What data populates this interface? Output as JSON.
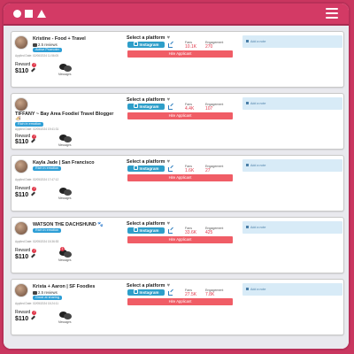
{
  "colors": {
    "frame": "#c9365f",
    "titlebar": "#d33a65",
    "accent_blue": "#2e9ec9",
    "hire_red": "#f05d66",
    "stat_red": "#e0384a",
    "note_bg": "#d8ebf7"
  },
  "common": {
    "select_platform": "Select a platform",
    "instagram_label": "Instagram",
    "fans_label": "Fans",
    "engagement_label": "Engagement",
    "hire_label": "Hire Applicant",
    "reward_label": "Reward",
    "reward_value": "$110",
    "messages_label": "Messages",
    "add_note": "Add a note",
    "applied_prefix": "Applied Date:"
  },
  "applicants": [
    {
      "name": "Kristine - Food + Travel",
      "reviews": "2.5 reviews",
      "badge": "Active Promoter",
      "applied": "02/06/2024 11:56:05",
      "fans": "10.1K",
      "engagement": "270",
      "messages": ""
    },
    {
      "name": "TIFFANY ~ Bay Area Foodie/ Travel Blogger",
      "name2": "🍜",
      "reviews": "",
      "badge": "Rich in emotion",
      "applied": "02/05/2024 19:41:31",
      "fans": "4.4K",
      "engagement": "107",
      "messages": ""
    },
    {
      "name": "Kayla Jade | San Francisco",
      "reviews": "",
      "badge": "Rich in emotion",
      "applied": "02/05/2024 17:47:12",
      "fans": "1.6K",
      "engagement": "27",
      "messages": ""
    },
    {
      "name": "WATSON THE DACHSHUND 🐾",
      "reviews": "",
      "badge": "Rich in emotion",
      "applied": "02/05/2024 15:36:53",
      "fans": "33.6K",
      "engagement": "425",
      "messages": "1"
    },
    {
      "name": "Krista + Aaron | SF Foodies",
      "reviews": "2.5 reviews",
      "badge": "Good at sharing",
      "applied": "02/05/2024 15:24:11",
      "fans": "27.5K",
      "engagement": "7.8K",
      "messages": ""
    }
  ]
}
